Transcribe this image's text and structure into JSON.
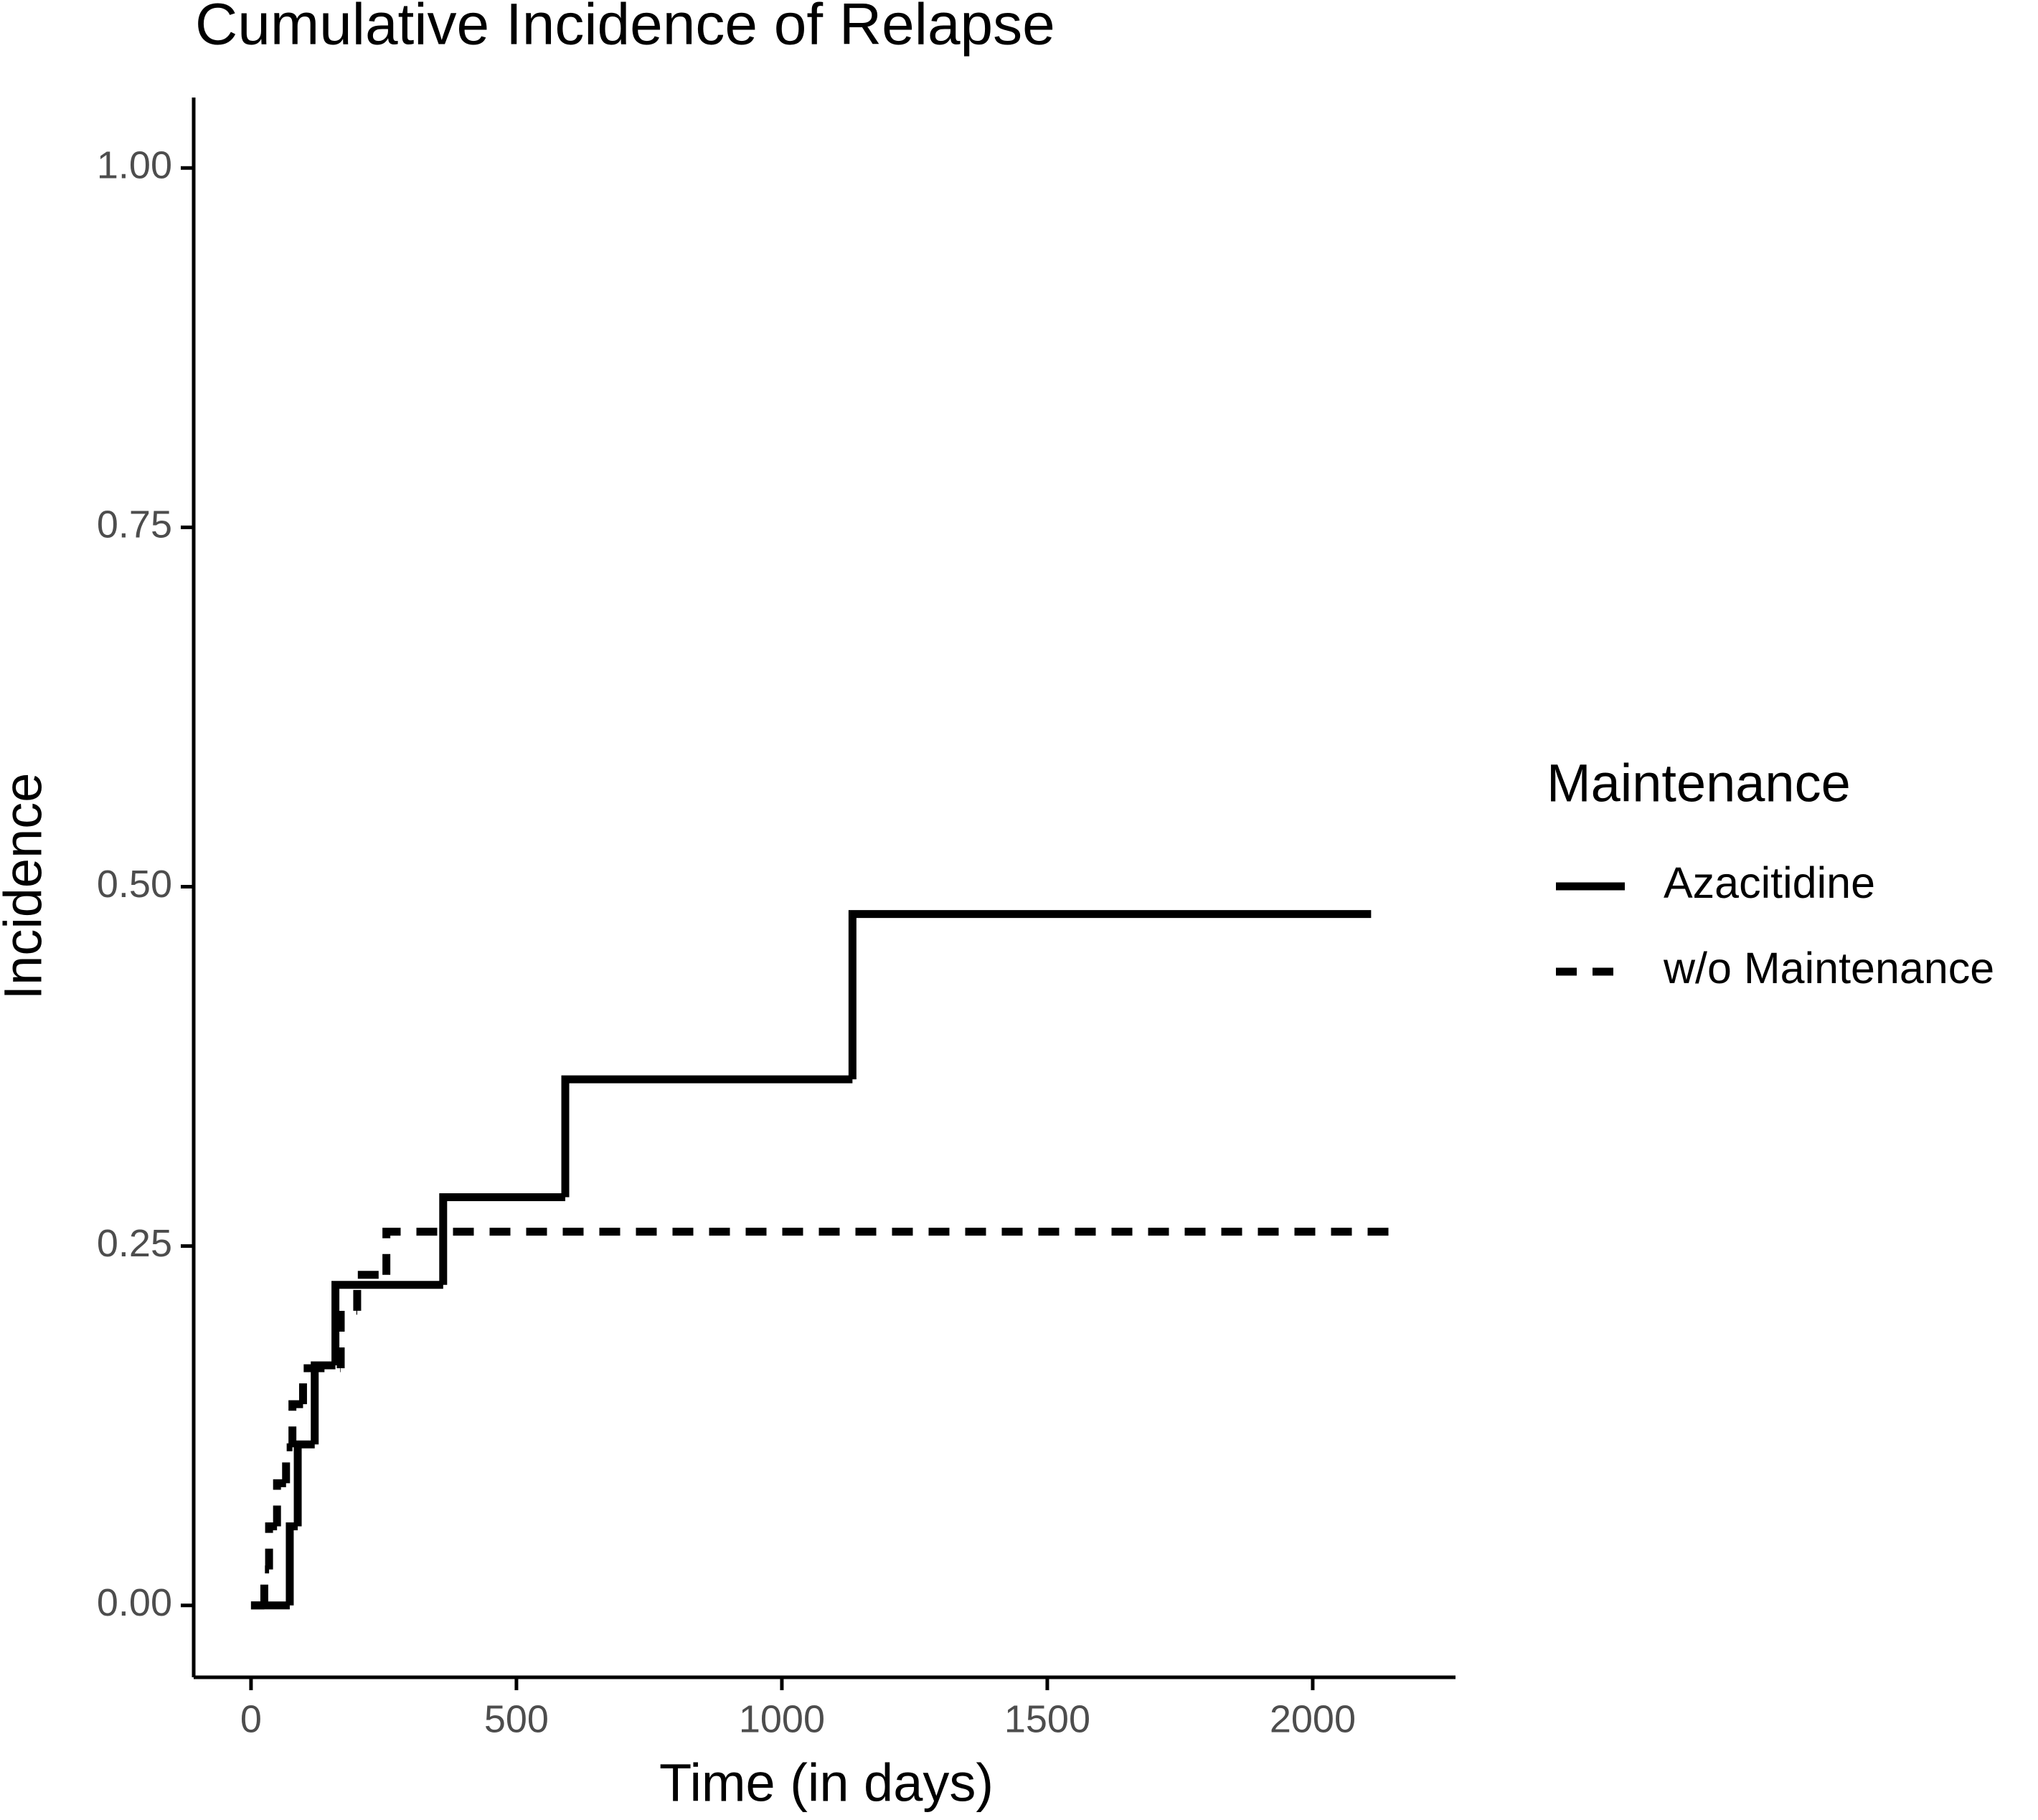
{
  "chart_data": {
    "type": "step",
    "title": "Cumulative Incidence of Relapse",
    "x_label": "Time (in days)",
    "y_label": "Incidence",
    "legend_title": "Maintenance",
    "series": [
      {
        "name": "Azacitidine",
        "color": "#000000",
        "linestyle": "solid",
        "x": [
          0,
          73,
          88,
          120,
          159,
          362,
          592,
          1133,
          2110
        ],
        "values": [
          0,
          0.055,
          0.112,
          0.167,
          0.223,
          0.284,
          0.366,
          0.481,
          0.481
        ]
      },
      {
        "name": "w/o Maintenance",
        "color": "#000000",
        "linestyle": "dashed",
        "x": [
          0,
          25,
          34,
          49,
          66,
          78,
          98,
          169,
          200,
          255,
          2147
        ],
        "values": [
          0,
          0.025,
          0.055,
          0.085,
          0.11,
          0.14,
          0.165,
          0.205,
          0.23,
          0.26,
          0.26
        ]
      }
    ],
    "xlim": [
      -108,
      2269
    ],
    "ylim": [
      -0.05,
      1.049
    ],
    "xticks": [
      0,
      500,
      1000,
      1500,
      2000
    ],
    "yticks": [
      {
        "value": 0,
        "label": "0.00"
      },
      {
        "value": 0.25,
        "label": "0.25"
      },
      {
        "value": 0.5,
        "label": "0.50"
      },
      {
        "value": 0.75,
        "label": "0.75"
      },
      {
        "value": 1,
        "label": "1.00"
      }
    ],
    "grid": false
  }
}
